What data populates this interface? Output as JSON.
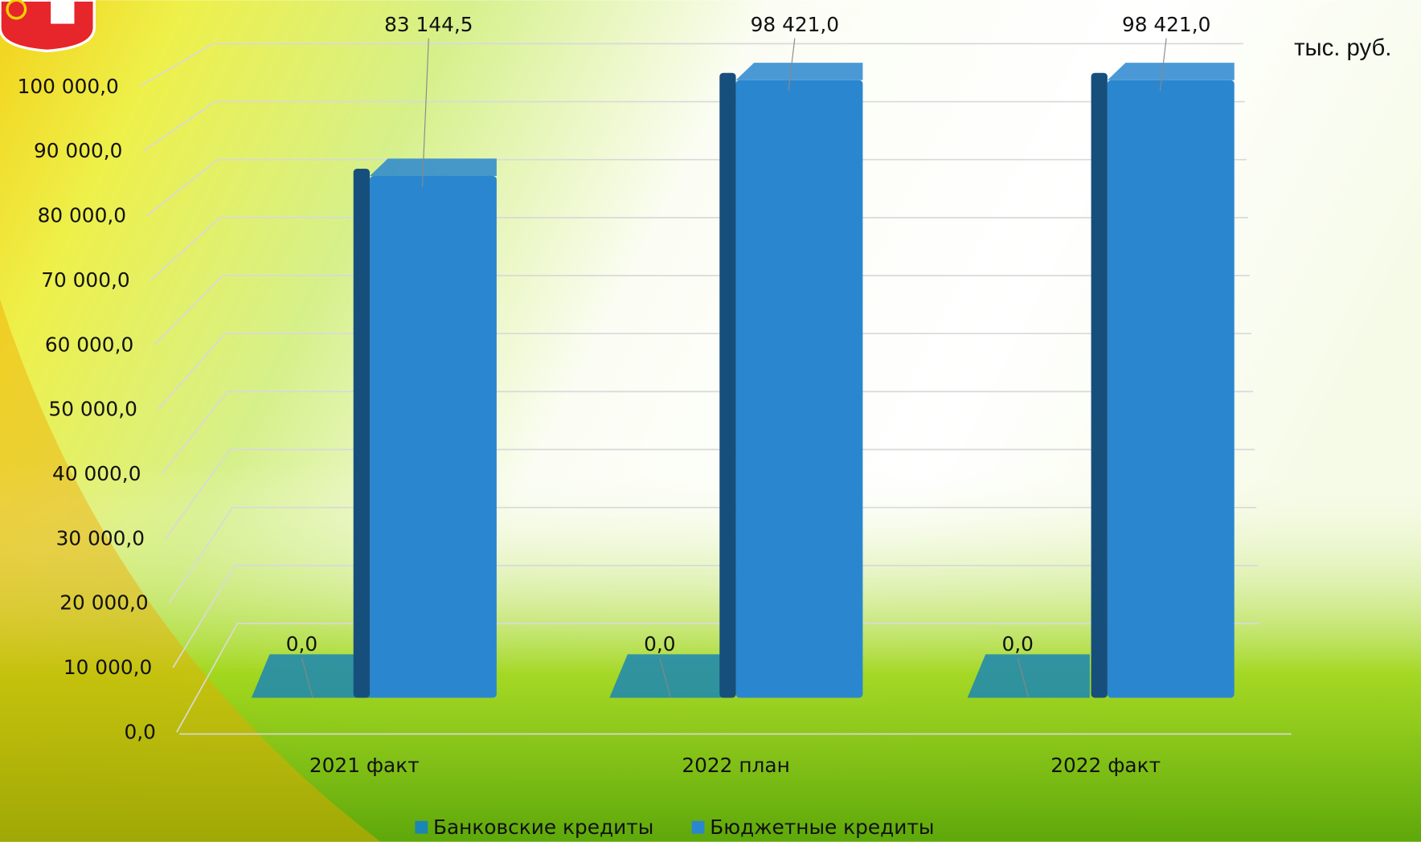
{
  "chart_data": {
    "type": "bar3d",
    "unit_label": "тыс. руб.",
    "categories": [
      "2021 факт",
      "2022 план",
      "2022 факт"
    ],
    "series": [
      {
        "name": "Банковские кредиты",
        "color": "#1b86b3",
        "values": [
          0,
          0,
          0
        ],
        "value_labels": [
          "0,0",
          "0,0",
          "0,0"
        ]
      },
      {
        "name": "Бюджетные кредиты",
        "color": "#2a87cf",
        "values": [
          83144.5,
          98421,
          98421
        ],
        "value_labels": [
          "83 144,5",
          "98 421,0",
          "98 421,0"
        ]
      }
    ],
    "ylim": [
      0,
      110000
    ],
    "yticks": [
      {
        "value": 0,
        "label": "0,0"
      },
      {
        "value": 10000,
        "label": "10 000,0"
      },
      {
        "value": 20000,
        "label": "20 000,0"
      },
      {
        "value": 30000,
        "label": "30 000,0"
      },
      {
        "value": 40000,
        "label": "40 000,0"
      },
      {
        "value": 50000,
        "label": "50 000,0"
      },
      {
        "value": 60000,
        "label": "60 000,0"
      },
      {
        "value": 70000,
        "label": "70 000,0"
      },
      {
        "value": 80000,
        "label": "80 000,0"
      },
      {
        "value": 90000,
        "label": "90 000,0"
      },
      {
        "value": 100000,
        "label": "100 000,0"
      }
    ],
    "grid": true,
    "legend": "bottom"
  }
}
